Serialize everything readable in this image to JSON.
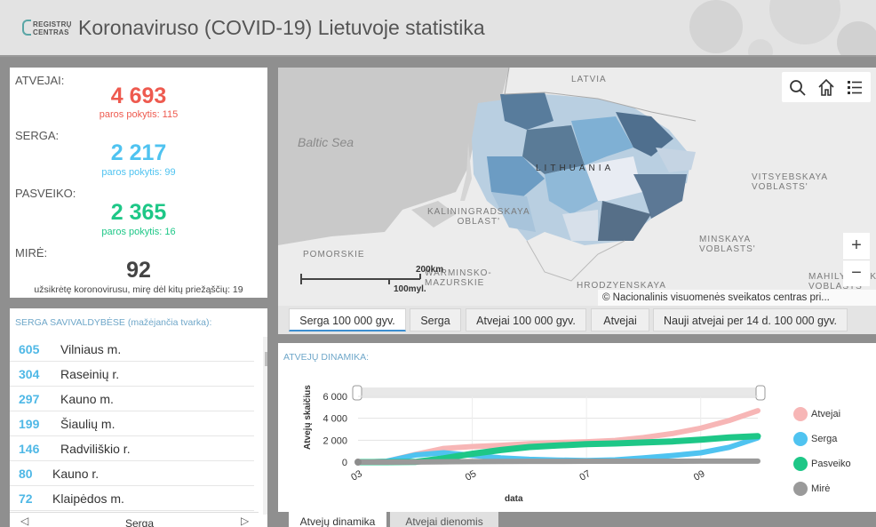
{
  "header": {
    "logo_line1": "REGISTRŲ",
    "logo_line2": "CENTRAS",
    "title": "Koronaviruso (COVID-19) Lietuvoje statistika"
  },
  "stats": {
    "cases_label": "ATVEJAI:",
    "cases_value": "4 693",
    "cases_change": "paros pokytis: 115",
    "active_label": "SERGA:",
    "active_value": "2 217",
    "active_change": "paros pokytis: 99",
    "recovered_label": "PASVEIKO:",
    "recovered_value": "2 365",
    "recovered_change": "paros pokytis: 16",
    "deaths_label": "MIRĖ:",
    "deaths_value": "92",
    "deaths_note": "užsikrėtę koronovirusu, mirę dėl kitų priežąščių: 19"
  },
  "municipalities": {
    "title": "SERGA SAVIVALDYBĖSE (mažėjančia tvarka):",
    "rows": [
      {
        "count": "605",
        "name": "Vilniaus m."
      },
      {
        "count": "304",
        "name": "Raseinių r."
      },
      {
        "count": "297",
        "name": "Kauno m."
      },
      {
        "count": "199",
        "name": "Šiaulių m."
      },
      {
        "count": "146",
        "name": "Radviliškio r."
      },
      {
        "count": "80",
        "name": "Kauno r."
      },
      {
        "count": "72",
        "name": "Klaipėdos m."
      }
    ],
    "footer_label": "Serga",
    "footer_prev": "◁",
    "footer_next": "▷"
  },
  "map": {
    "labels": {
      "latvia": "LATVIA",
      "lithuania": "LITHUANIA",
      "baltic": "Baltic Sea",
      "kaliningrad": "KALININGRADSKAYA\nOBLAST'",
      "vitsyebsk": "VITSYEBSKAYA\nVOBLASTS'",
      "minsk": "MINSKAYA\nVOBLASTS'",
      "pomorskie": "POMORSKIE",
      "warminsko": "WARMINSKO-\nMAZURSKIE",
      "hrodzyenskaya": "HRODZYENSKAYA",
      "mahilyowskaya": "MAHILYOWSKAYA\nVOBLASTS'"
    },
    "scale_km": "200km",
    "scale_mi": "100myl.",
    "attribution": "© Nacionalinis visuomenės sveikatos centras pri...",
    "zoom_in": "+",
    "zoom_out": "−",
    "toolbar_icons": [
      "search-icon",
      "home-icon",
      "list-icon"
    ]
  },
  "map_tabs": [
    "Serga 100 000 gyv.",
    "Serga",
    "Atvejai 100 000 gyv.",
    "Atvejai",
    "Nauji atvejai per 14 d. 100 000 gyv."
  ],
  "dynamics": {
    "title": "ATVEJŲ DINAMIKA:"
  },
  "bottom_tabs": [
    "Atvejų dinamika",
    "Atvejai dienomis"
  ],
  "chart_data": {
    "type": "line",
    "title": "",
    "xlabel": "data",
    "ylabel": "Atvejų skaičius",
    "x_ticks": [
      "03",
      "05",
      "07",
      "09"
    ],
    "y_ticks": [
      "0",
      "2 000",
      "4 000",
      "6 000"
    ],
    "ylim": [
      0,
      6000
    ],
    "legend_position": "right",
    "grid": true,
    "x": [
      "03-01",
      "03-15",
      "04-01",
      "04-15",
      "05-01",
      "05-15",
      "06-01",
      "06-15",
      "07-01",
      "07-15",
      "08-01",
      "08-15",
      "09-01",
      "09-15",
      "09-27"
    ],
    "series": [
      {
        "name": "Atvejai",
        "color": "#f7b6b6",
        "values": [
          0,
          80,
          700,
          1250,
          1420,
          1530,
          1690,
          1780,
          1860,
          1980,
          2250,
          2600,
          3100,
          3800,
          4693
        ]
      },
      {
        "name": "Serga",
        "color": "#4fc3f0",
        "values": [
          0,
          70,
          650,
          850,
          620,
          380,
          250,
          190,
          150,
          200,
          380,
          600,
          850,
          1350,
          2217
        ]
      },
      {
        "name": "Pasveiko",
        "color": "#1ec787",
        "values": [
          0,
          0,
          20,
          350,
          760,
          1100,
          1380,
          1520,
          1640,
          1700,
          1790,
          1890,
          2050,
          2250,
          2365
        ]
      },
      {
        "name": "Mirė",
        "color": "#9a9a9a",
        "values": [
          0,
          0,
          8,
          32,
          46,
          56,
          71,
          75,
          78,
          80,
          81,
          83,
          86,
          89,
          92
        ]
      }
    ]
  }
}
